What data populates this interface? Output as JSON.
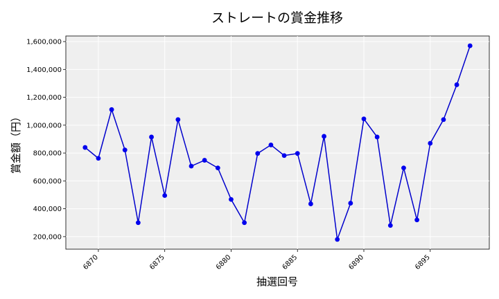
{
  "chart_data": {
    "type": "line",
    "title": "ストレートの賞金推移",
    "xlabel": "抽選回号",
    "ylabel": "賞金額（円）",
    "x": [
      6869,
      6870,
      6871,
      6872,
      6873,
      6874,
      6875,
      6876,
      6877,
      6878,
      6879,
      6880,
      6881,
      6882,
      6883,
      6884,
      6885,
      6886,
      6887,
      6888,
      6889,
      6890,
      6891,
      6892,
      6893,
      6894,
      6895,
      6896,
      6897,
      6898
    ],
    "series": [
      {
        "values": [
          840000,
          762000,
          1112000,
          822000,
          300000,
          915000,
          495000,
          1040000,
          706000,
          748000,
          693000,
          467000,
          300000,
          797000,
          858000,
          782000,
          797000,
          435000,
          920000,
          180000,
          440000,
          1045000,
          915000,
          280000,
          693000,
          320000,
          870000,
          1040000,
          1290000,
          1570000
        ]
      }
    ],
    "x_ticks": [
      "6870",
      "6875",
      "6880",
      "6885",
      "6890",
      "6895"
    ],
    "y_ticks": [
      "200,000",
      "400,000",
      "600,000",
      "800,000",
      "1,000,000",
      "1,200,000",
      "1,400,000",
      "1,600,000"
    ],
    "xlim": [
      6867.55,
      6899.45
    ],
    "ylim": [
      110000,
      1640000
    ],
    "grid": true,
    "line_color": "#0000cc",
    "marker_color": "#0000ee",
    "plot_background": "#efefef"
  }
}
